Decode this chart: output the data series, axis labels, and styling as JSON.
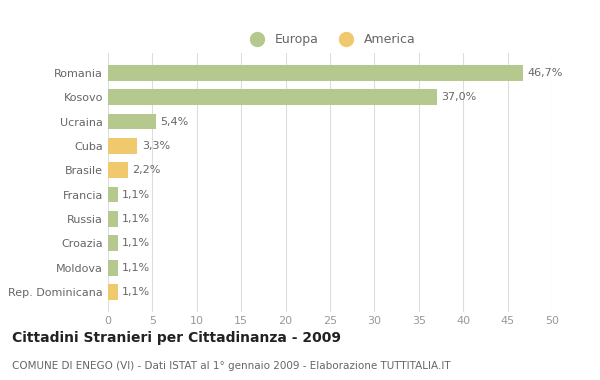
{
  "categories": [
    "Romania",
    "Kosovo",
    "Ucraina",
    "Cuba",
    "Brasile",
    "Francia",
    "Russia",
    "Croazia",
    "Moldova",
    "Rep. Dominicana"
  ],
  "values": [
    46.7,
    37.0,
    5.4,
    3.3,
    2.2,
    1.1,
    1.1,
    1.1,
    1.1,
    1.1
  ],
  "labels": [
    "46,7%",
    "37,0%",
    "5,4%",
    "3,3%",
    "2,2%",
    "1,1%",
    "1,1%",
    "1,1%",
    "1,1%",
    "1,1%"
  ],
  "colors": [
    "#b5c98e",
    "#b5c98e",
    "#b5c98e",
    "#f0c96e",
    "#f0c96e",
    "#b5c98e",
    "#b5c98e",
    "#b5c98e",
    "#b5c98e",
    "#f0c96e"
  ],
  "europa_color": "#b5c98e",
  "america_color": "#f0c96e",
  "title": "Cittadini Stranieri per Cittadinanza - 2009",
  "subtitle": "COMUNE DI ENEGO (VI) - Dati ISTAT al 1° gennaio 2009 - Elaborazione TUTTITALIA.IT",
  "xlim": [
    0,
    50
  ],
  "xticks": [
    0,
    5,
    10,
    15,
    20,
    25,
    30,
    35,
    40,
    45,
    50
  ],
  "background_color": "#ffffff",
  "grid_color": "#dddddd",
  "legend_europa": "Europa",
  "legend_america": "America",
  "label_color": "#666666",
  "tick_color": "#999999"
}
